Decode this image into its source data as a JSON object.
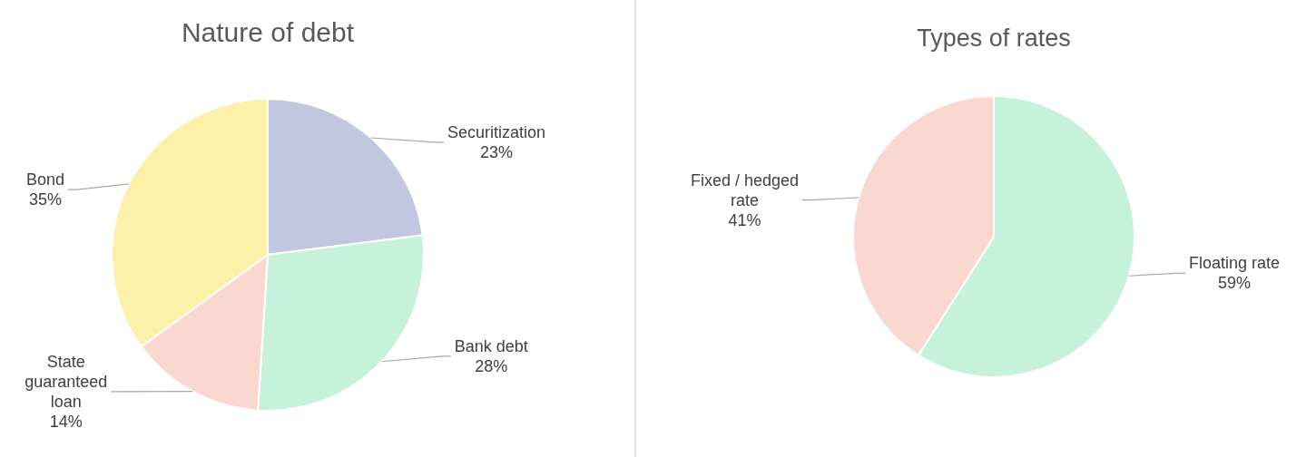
{
  "chart_data": [
    {
      "type": "pie",
      "title": "Nature of debt",
      "categories": [
        "Securitization",
        "Bank debt",
        "State guaranteed loan",
        "Bond"
      ],
      "values": [
        23,
        28,
        14,
        35
      ],
      "colors": [
        "#c2c7e0",
        "#c6f1da",
        "#fad8cf",
        "#fdf0a8"
      ],
      "value_labels": [
        "23%",
        "28%",
        "14%",
        "35%"
      ]
    },
    {
      "type": "pie",
      "title": "Types of rates",
      "categories": [
        "Floating rate",
        "Fixed / hedged rate"
      ],
      "values": [
        59,
        41
      ],
      "colors": [
        "#c6f1da",
        "#fad8cf"
      ],
      "value_labels": [
        "59%",
        "41%"
      ]
    }
  ]
}
